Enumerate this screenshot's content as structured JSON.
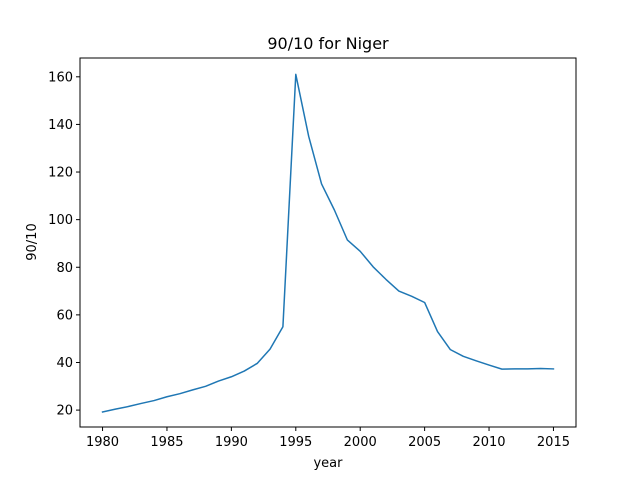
{
  "chart_data": {
    "type": "line",
    "title": "90/10 for Niger",
    "xlabel": "year",
    "ylabel": "90/10",
    "xlim": [
      1978.25,
      2016.75
    ],
    "ylim": [
      12.9,
      167.9
    ],
    "grid": false,
    "x_ticks": [
      1980,
      1985,
      1990,
      1995,
      2000,
      2005,
      2010,
      2015
    ],
    "y_ticks": [
      20,
      40,
      60,
      80,
      100,
      120,
      140,
      160
    ],
    "series": [
      {
        "color": "#1f77b4",
        "x": [
          1980,
          1981,
          1982,
          1983,
          1984,
          1985,
          1986,
          1987,
          1988,
          1989,
          1990,
          1991,
          1992,
          1993,
          1994,
          1995,
          1996,
          1997,
          1998,
          1999,
          2000,
          2001,
          2002,
          2003,
          2004,
          2005,
          2006,
          2007,
          2008,
          2009,
          2010,
          2011,
          2012,
          2013,
          2014,
          2015
        ],
        "values": [
          19.2,
          20.4,
          21.5,
          22.8,
          24.0,
          25.6,
          26.9,
          28.5,
          30.0,
          32.2,
          34.0,
          36.4,
          39.6,
          45.6,
          55.0,
          161.0,
          135.0,
          115.0,
          104.0,
          91.5,
          86.7,
          80.2,
          74.9,
          70.0,
          67.8,
          65.2,
          53.0,
          45.4,
          42.6,
          40.7,
          38.9,
          37.2,
          37.3,
          37.3,
          37.5,
          37.3
        ]
      }
    ]
  }
}
